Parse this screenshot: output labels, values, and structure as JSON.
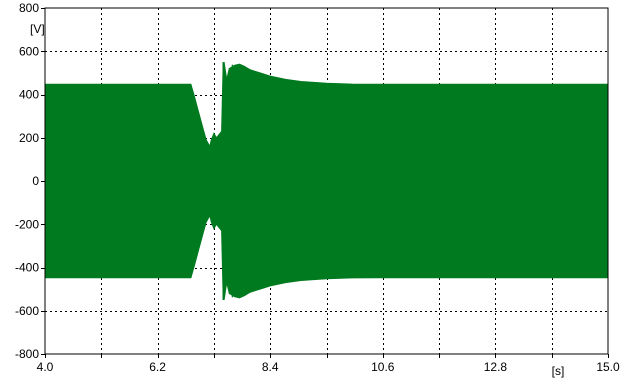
{
  "chart_data": {
    "type": "line",
    "title": "",
    "xlabel": "",
    "ylabel": "",
    "x_unit": "[s]",
    "y_unit": "[V]",
    "xlim": [
      4.0,
      15.0
    ],
    "ylim": [
      -800,
      800
    ],
    "x_ticks": [
      4.0,
      5.1,
      6.2,
      7.3,
      8.4,
      9.5,
      10.6,
      11.7,
      12.8,
      13.9,
      15.0
    ],
    "x_tick_labels": [
      "4.0",
      "",
      "6.2",
      "",
      "8.4",
      "",
      "10.6",
      "",
      "12.8",
      "",
      "15.0"
    ],
    "y_ticks": [
      800,
      600,
      400,
      200,
      0,
      -200,
      -400,
      -600,
      -800
    ],
    "y_tick_labels": [
      "800",
      "600",
      "400",
      "200",
      "0",
      "-200",
      "-400",
      "-600",
      "-800"
    ],
    "grid": true,
    "series": [
      {
        "color": "#007a1f",
        "envelope": {
          "t": [
            4.0,
            6.85,
            6.92,
            7.0,
            7.08,
            7.15,
            7.22,
            7.25,
            7.3,
            7.35,
            7.4,
            7.45,
            7.48,
            7.5,
            7.55,
            7.6,
            7.7,
            7.8,
            7.9,
            8.0,
            8.2,
            8.4,
            8.7,
            9.0,
            9.5,
            10.0,
            10.5,
            11.0,
            12.0,
            13.0,
            14.0,
            15.0
          ],
          "upper": [
            447,
            447,
            390,
            320,
            250,
            190,
            160,
            190,
            220,
            200,
            215,
            230,
            530,
            550,
            470,
            520,
            535,
            540,
            530,
            515,
            500,
            485,
            470,
            460,
            452,
            448,
            447,
            447,
            447,
            447,
            447,
            447
          ],
          "lower": [
            -447,
            -447,
            -390,
            -320,
            -250,
            -190,
            -160,
            -190,
            -220,
            -200,
            -215,
            -230,
            -530,
            -550,
            -470,
            -520,
            -535,
            -540,
            -530,
            -515,
            -500,
            -485,
            -470,
            -460,
            -452,
            -448,
            -447,
            -447,
            -447,
            -447,
            -447,
            -447
          ]
        }
      }
    ]
  }
}
